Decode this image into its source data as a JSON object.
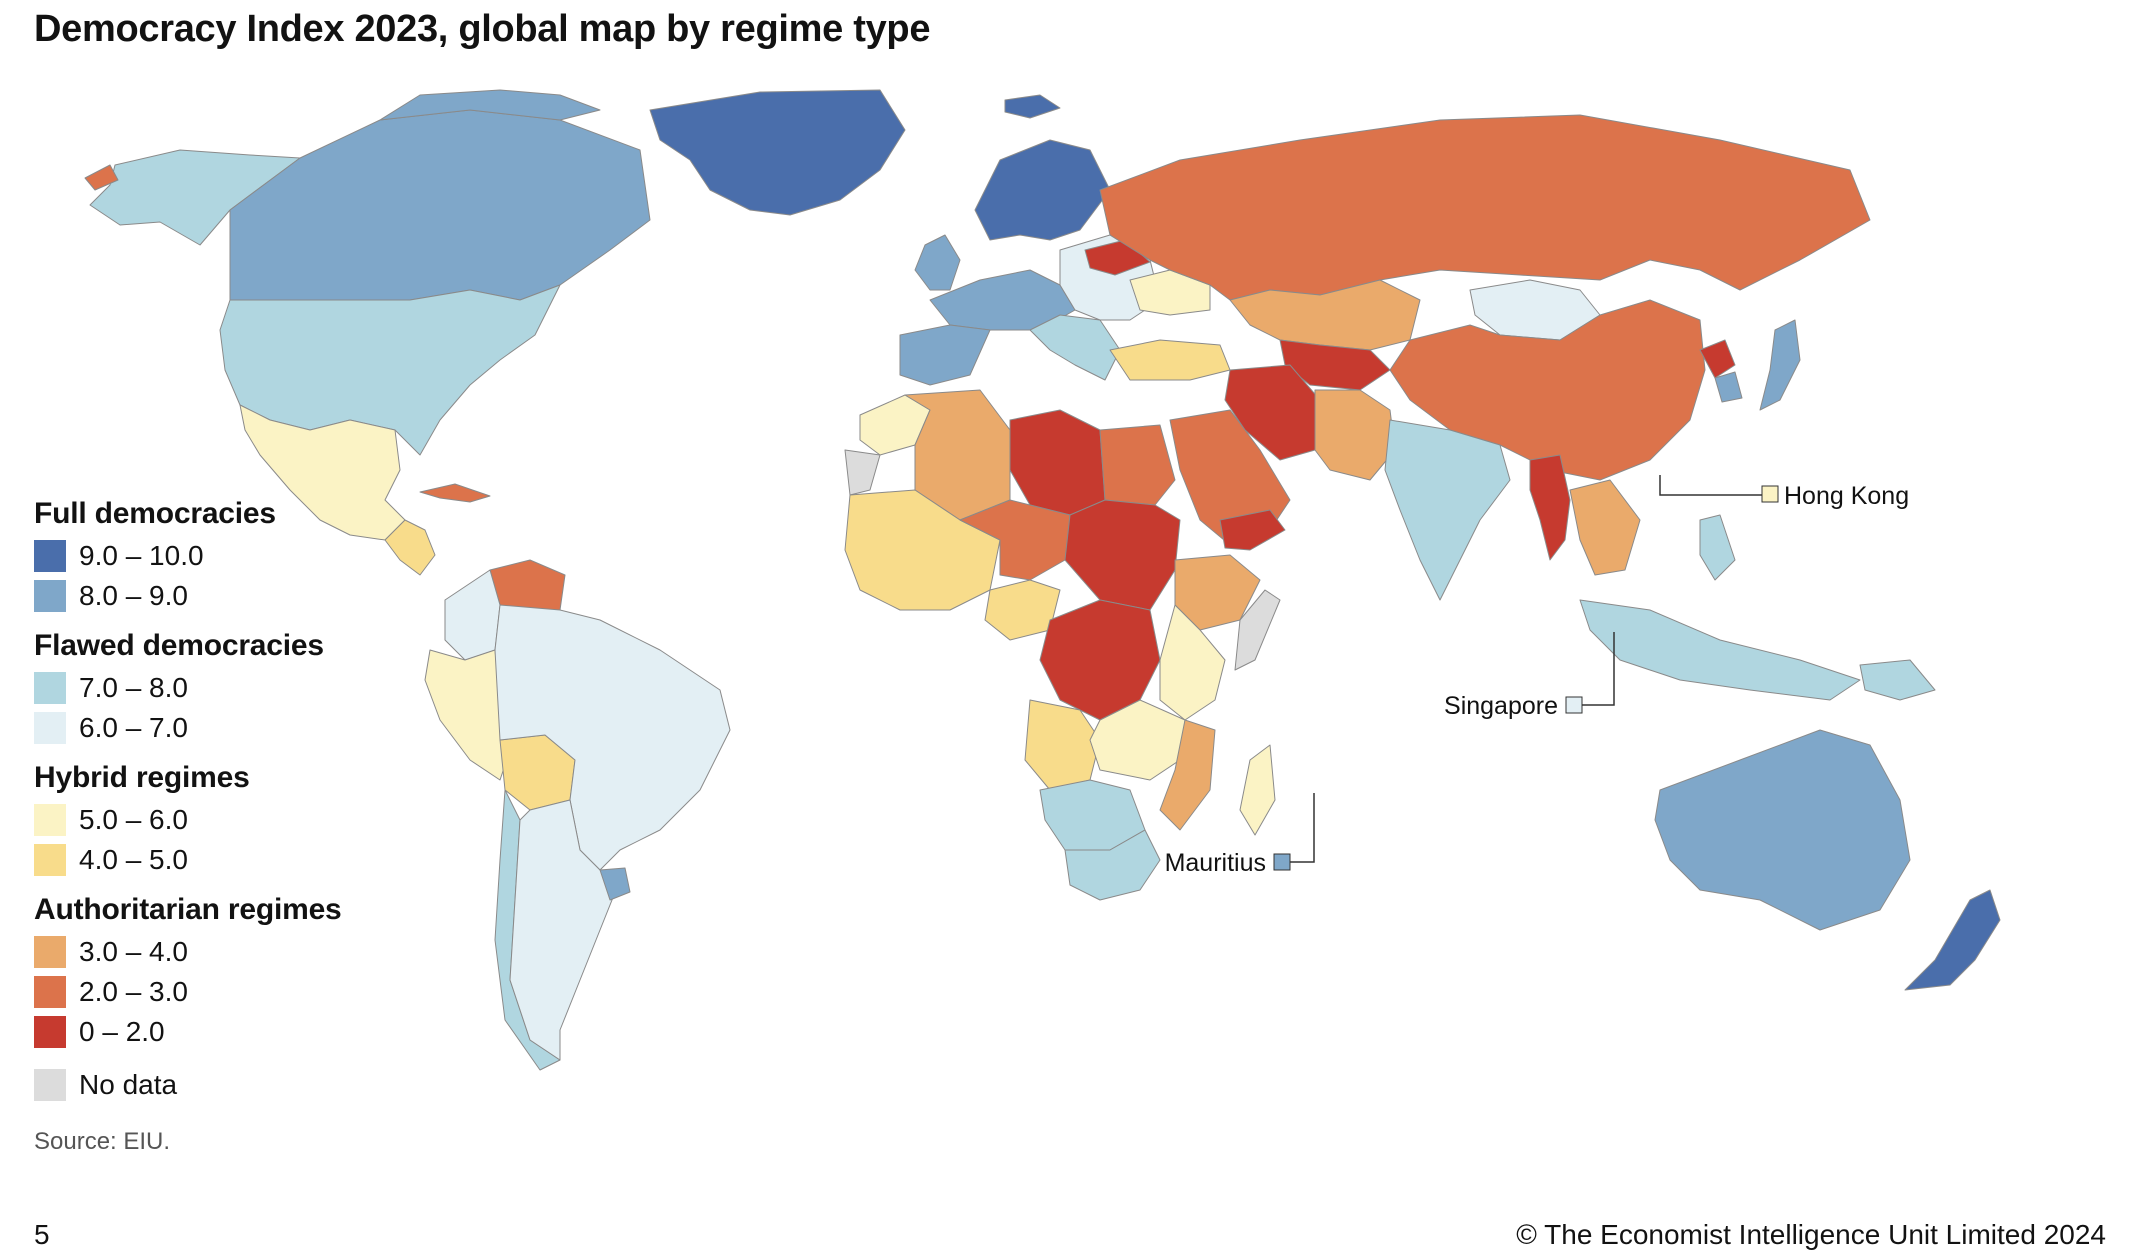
{
  "title": "Democracy Index 2023, global map by regime type",
  "legend": {
    "groups": [
      {
        "heading": "Full democracies",
        "items": [
          {
            "label": "9.0 – 10.0",
            "color": "#4a6eab"
          },
          {
            "label": "8.0 – 9.0",
            "color": "#7fa7c9"
          }
        ]
      },
      {
        "heading": "Flawed democracies",
        "items": [
          {
            "label": "7.0 – 8.0",
            "color": "#b0d6e0"
          },
          {
            "label": "6.0 – 7.0",
            "color": "#e3eff4"
          }
        ]
      },
      {
        "heading": "Hybrid regimes",
        "items": [
          {
            "label": "5.0 – 6.0",
            "color": "#fbf3c5"
          },
          {
            "label": "4.0 – 5.0",
            "color": "#f8dc8b"
          }
        ]
      },
      {
        "heading": "Authoritarian regimes",
        "items": [
          {
            "label": "3.0 – 4.0",
            "color": "#eaaa6b"
          },
          {
            "label": "2.0 – 3.0",
            "color": "#dc734b"
          },
          {
            "label": "0 – 2.0",
            "color": "#c63a2f"
          }
        ]
      }
    ],
    "no_data": {
      "label": "No data",
      "color": "#dcdcdc"
    }
  },
  "callouts": {
    "hong_kong": {
      "label": "Hong Kong",
      "color": "#fbf3c5"
    },
    "singapore": {
      "label": "Singapore",
      "color": "#e3eff4"
    },
    "mauritius": {
      "label": "Mauritius",
      "color": "#7fa7c9"
    }
  },
  "source": "Source: EIU.",
  "page_number": "5",
  "copyright": "© The Economist Intelligence Unit Limited 2024"
}
